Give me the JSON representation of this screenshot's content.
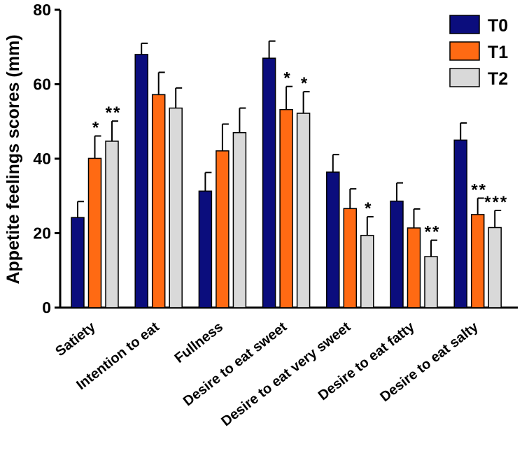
{
  "chart_data": {
    "type": "bar",
    "title": "",
    "xlabel": "",
    "ylabel": "Appetite feelings scores (mm)",
    "ylim": [
      0,
      80
    ],
    "yticks": [
      "0",
      "20",
      "40",
      "60",
      "80"
    ],
    "categories": [
      "Satiety",
      "Intention to eat",
      "Fullness",
      "Desire to eat sweet",
      "Desire to eat very sweet",
      "Desire to eat fatty",
      "Desire to eat salty"
    ],
    "series": [
      {
        "name": "T0",
        "color": "#0b0d7d",
        "values": [
          24.2,
          68,
          31.3,
          67,
          36.4,
          28.6,
          45
        ],
        "errors": [
          4.3,
          3,
          5,
          4.6,
          4.7,
          4.9,
          4.6
        ],
        "sig": [
          "",
          "",
          "",
          "",
          "",
          "",
          ""
        ]
      },
      {
        "name": "T1",
        "color": "#ff6a13",
        "values": [
          40.1,
          57.2,
          42.1,
          53.2,
          26.6,
          21.4,
          25
        ],
        "errors": [
          6,
          6,
          7.2,
          6.2,
          5.3,
          5.1,
          4.4
        ],
        "sig": [
          "*",
          "",
          "",
          "*",
          "",
          "",
          "**"
        ]
      },
      {
        "name": "T2",
        "color": "#d9d9d9",
        "values": [
          44.7,
          53.6,
          47,
          52.2,
          19.4,
          13.7,
          21.5
        ],
        "errors": [
          5.4,
          5.4,
          6.6,
          5.8,
          5,
          4.4,
          4.6
        ],
        "sig": [
          "**",
          "",
          "",
          "*",
          "*",
          "**",
          "***"
        ]
      }
    ],
    "legend": "top-right"
  }
}
